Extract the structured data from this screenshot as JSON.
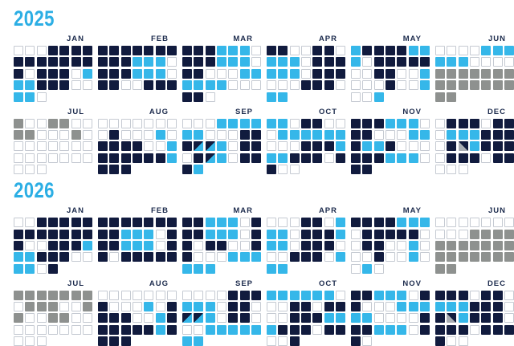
{
  "page_background": "#FFFFFF",
  "chart_data": {
    "type": "heatmap",
    "subtype": "two-year-calendar-grid",
    "grid_columns_per_month": 7,
    "legend_position": "none",
    "cell_codes": {
      "w": "empty-outlined",
      "n": "navy",
      "c": "cyan",
      "g": "gray",
      "s": "split-navy-cyan-diagonal",
      "d": "split-gray-navy-diagonal"
    },
    "colors": {
      "title": "#2BAEE4",
      "label": "#1C2B4D",
      "navy": "#111B3E",
      "cyan": "#35B7E9",
      "gray": "#8E918F",
      "splitgray": "#A9ADB3",
      "border": "#C5CAD2"
    },
    "years": [
      {
        "label": "2025",
        "months": [
          {
            "name": "JAN",
            "days": "wwwnnnnnnnnnnnnwnnnwcccnnnwwccw"
          },
          {
            "name": "FEB",
            "days": "nnnnnnnnnncccwnnncccwnnwwnnn"
          },
          {
            "name": "MAR",
            "days": "nnncccwnnncccwnnwwwccccccwwwnnw"
          },
          {
            "name": "APR",
            "days": "nnwwnnwcccwnnncccwnnnwwwnnnwcc"
          },
          {
            "name": "MAY",
            "days": "cnnnncccwnnnnnwwnnwwcwwwnwwcwwc"
          },
          {
            "name": "JUN",
            "days": "wwwwccccccwwwwgggggggggggggggg"
          },
          {
            "name": "JUL",
            "days": "gwwggwwggwwwgwwwwwwwwwwwwwwwwww"
          },
          {
            "name": "AUG",
            "days": "wwwwwwwwnwwwcwnnnnwwcnnnnnncnnn"
          },
          {
            "name": "SEP",
            "days": "wwwccccccwwwnnnsscwnnwnscwnnnc"
          },
          {
            "name": "OCT",
            "days": "ccwnnwwwccccccwwwnnncccnnnwnnww"
          },
          {
            "name": "NOV",
            "days": "nnncccwnnwwwccnccnwwwnnncccwnn"
          },
          {
            "name": "DEC",
            "days": "wnnnwnnwcccnnnwndcnnnwnnnwnnwww"
          }
        ]
      },
      {
        "label": "2026",
        "months": [
          {
            "name": "JAN",
            "days": "wwnnnnnnnnnnnnnwwnnncccnnnwwccwn"
          },
          {
            "name": "FEB",
            "days": "nnnnnnnnncccwnnncccwnnwnnnnn"
          },
          {
            "name": "MAR",
            "days": "nncccwnnncccwnnwnnwwnnwwwcccccc"
          },
          {
            "name": "APR",
            "days": "wwwnnwcccwnnncccwnnnwwwnnnwccc"
          },
          {
            "name": "MAY",
            "days": "nnnncccwnnnnnwwnnwwcwwwnwwcwwcw"
          },
          {
            "name": "JUN",
            "days": "wwwwwwwwwwgggggggggggggggggggg"
          },
          {
            "name": "JUL",
            "days": "gggggggwgggwwggwwggwwwwwwwwwwww"
          },
          {
            "name": "AUG",
            "days": "wwwwwwwnwwwcwnnnnwwcnnnnnncnnnn"
          },
          {
            "name": "SEP",
            "days": "wwwwnnncccwnnwsscwnnwwwccccccc"
          },
          {
            "name": "OCT",
            "days": "ccccccwwwnnwnnwwnnncccnnnwnnwwn"
          },
          {
            "name": "NOV",
            "days": "nncccwnnwwwcccccwwwwnnncccwnnw"
          },
          {
            "name": "DEC",
            "days": "nnnwnnwcccnnnwndcnnnwnnnwnnnnww"
          }
        ]
      }
    ]
  }
}
